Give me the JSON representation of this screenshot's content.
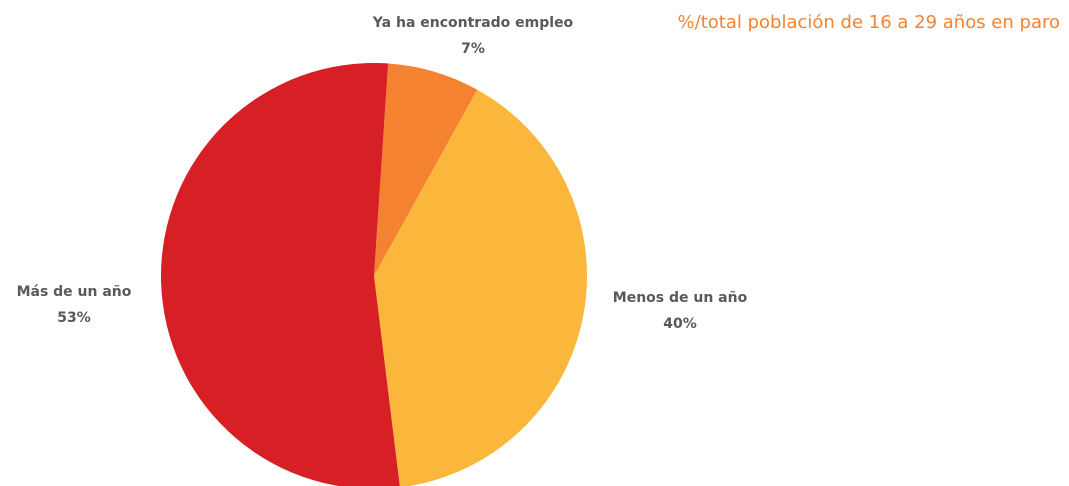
{
  "chart_data": {
    "type": "pie",
    "subtitle": "%/total población de 16 a 29 años en paro",
    "categories": [
      "Ya ha encontrado empleo",
      "Menos de un año",
      "Más de un año"
    ],
    "values": [
      7,
      40,
      53
    ],
    "value_labels": [
      "7%",
      "40%",
      "53%"
    ],
    "colors": [
      "#f58230",
      "#fbb73b",
      "#d71f26"
    ]
  }
}
